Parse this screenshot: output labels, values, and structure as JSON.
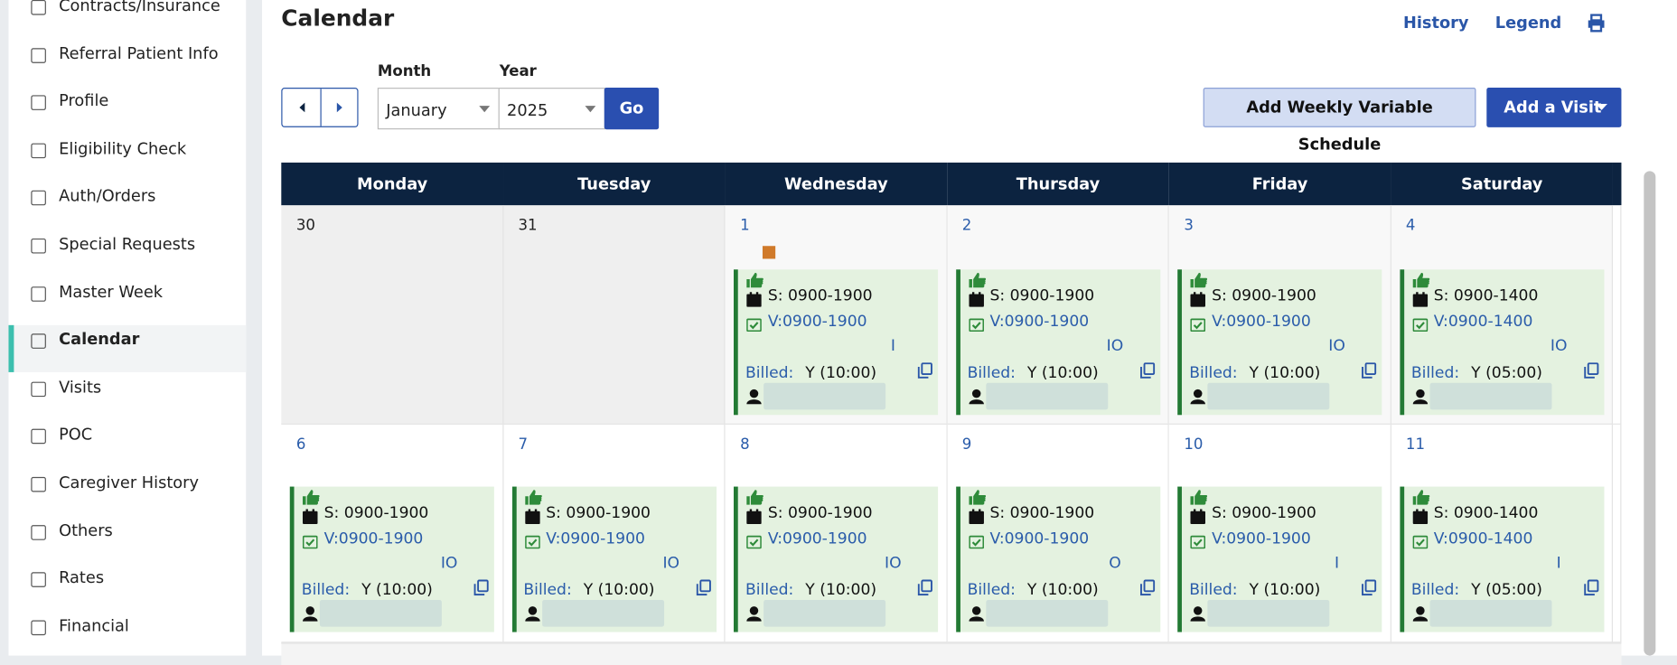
{
  "sidebar": {
    "items": [
      "Contracts/Insurance",
      "Referral Patient Info",
      "Profile",
      "Eligibility Check",
      "Auth/Orders",
      "Special Requests",
      "Master Week",
      "Calendar",
      "Visits",
      "POC",
      "Caregiver History",
      "Others",
      "Rates",
      "Financial"
    ],
    "active": 7
  },
  "header": {
    "title": "Calendar",
    "links": [
      "History",
      "Legend"
    ]
  },
  "controls": {
    "month_label": "Month",
    "year_label": "Year",
    "month": "January",
    "year": "2025",
    "go": "Go",
    "schedule_button": "Add Weekly Variable Schedule",
    "visit_button": "Add a Visit"
  },
  "calendar": {
    "weekdays": [
      "Monday",
      "Tuesday",
      "Wednesday",
      "Thursday",
      "Friday",
      "Saturday"
    ],
    "weeks": [
      {
        "days": [
          {
            "date": "30"
          },
          {
            "date": "31"
          },
          {
            "date": "1",
            "visit": {
              "schedule": "S: 0900-1900",
              "verified": "V:0900-1900",
              "code": "I",
              "billed_label": "Billed:",
              "billed": "Y (10:00)"
            }
          },
          {
            "date": "2",
            "visit": {
              "schedule": "S: 0900-1900",
              "verified": "V:0900-1900",
              "code": "IO",
              "billed_label": "Billed:",
              "billed": "Y (10:00)"
            }
          },
          {
            "date": "3",
            "visit": {
              "schedule": "S: 0900-1900",
              "verified": "V:0900-1900",
              "code": "IO",
              "billed_label": "Billed:",
              "billed": "Y (10:00)"
            }
          },
          {
            "date": "4",
            "visit": {
              "schedule": "S: 0900-1400",
              "verified": "V:0900-1400",
              "code": "IO",
              "billed_label": "Billed:",
              "billed": "Y (05:00)"
            }
          }
        ]
      },
      {
        "days": [
          {
            "date": "6",
            "visit": {
              "schedule": "S: 0900-1900",
              "verified": "V:0900-1900",
              "code": "IO",
              "billed_label": "Billed:",
              "billed": "Y (10:00)"
            }
          },
          {
            "date": "7",
            "visit": {
              "schedule": "S: 0900-1900",
              "verified": "V:0900-1900",
              "code": "IO",
              "billed_label": "Billed:",
              "billed": "Y (10:00)"
            }
          },
          {
            "date": "8",
            "visit": {
              "schedule": "S: 0900-1900",
              "verified": "V:0900-1900",
              "code": "IO",
              "billed_label": "Billed:",
              "billed": "Y (10:00)"
            }
          },
          {
            "date": "9",
            "visit": {
              "schedule": "S: 0900-1900",
              "verified": "V:0900-1900",
              "code": "O",
              "billed_label": "Billed:",
              "billed": "Y (10:00)"
            }
          },
          {
            "date": "10",
            "visit": {
              "schedule": "S: 0900-1900",
              "verified": "V:0900-1900",
              "code": "I",
              "billed_label": "Billed:",
              "billed": "Y (10:00)"
            }
          },
          {
            "date": "11",
            "visit": {
              "schedule": "S: 0900-1400",
              "verified": "V:0900-1400",
              "code": "I",
              "billed_label": "Billed:",
              "billed": "Y (05:00)"
            }
          }
        ]
      }
    ]
  }
}
